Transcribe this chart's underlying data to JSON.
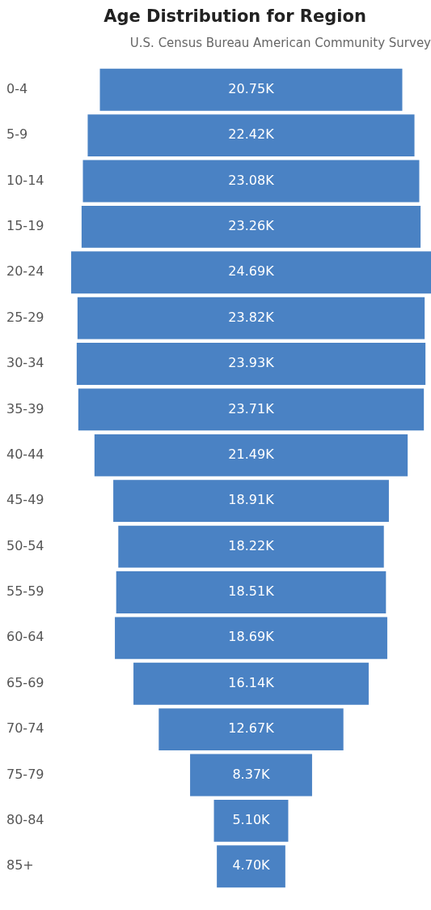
{
  "chart_data": {
    "type": "other",
    "title": "Age Distribution for Region",
    "subtitle": "U.S. Census Bureau American Community Survey",
    "categories": [
      "0-4",
      "5-9",
      "10-14",
      "15-19",
      "20-24",
      "25-29",
      "30-34",
      "35-39",
      "40-44",
      "45-49",
      "50-54",
      "55-59",
      "60-64",
      "65-69",
      "70-74",
      "75-79",
      "80-84",
      "85+"
    ],
    "values": [
      20.75,
      22.42,
      23.08,
      23.26,
      24.69,
      23.82,
      23.93,
      23.71,
      21.49,
      18.91,
      18.22,
      18.51,
      18.69,
      16.14,
      12.67,
      8.37,
      5.1,
      4.7
    ],
    "value_labels": [
      "20.75K",
      "22.42K",
      "23.08K",
      "23.26K",
      "24.69K",
      "23.82K",
      "23.93K",
      "23.71K",
      "21.49K",
      "18.91K",
      "18.22K",
      "18.51K",
      "18.69K",
      "16.14K",
      "12.67K",
      "8.37K",
      "5.10K",
      "4.70K"
    ],
    "color": "#4a82c4"
  }
}
